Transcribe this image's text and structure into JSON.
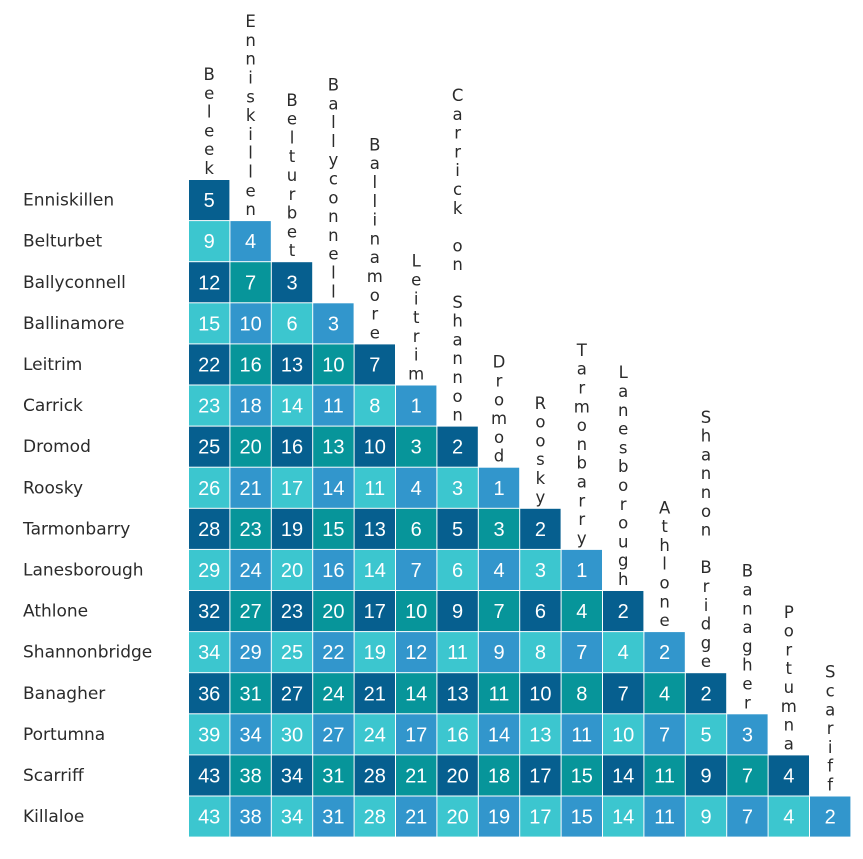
{
  "chart_data": {
    "type": "heatmap",
    "title": "",
    "columns": [
      "Beleek",
      "Enniskillen",
      "Belturbet",
      "Ballyconnell",
      "Ballinamore",
      "Leitrim",
      "Carrick on Shannon",
      "Dromod",
      "Roosky",
      "Tarmonbarry",
      "Lanesborough",
      "Athlone",
      "Shannon Bridge",
      "Banagher",
      "Portumna",
      "Scariff"
    ],
    "rows": [
      "Enniskillen",
      "Belturbet",
      "Ballyconnell",
      "Ballinamore",
      "Leitrim",
      "Carrick",
      "Dromod",
      "Roosky",
      "Tarmonbarry",
      "Lanesborough",
      "Athlone",
      "Shannonbridge",
      "Banagher",
      "Portumna",
      "Scarriff",
      "Killaloe"
    ],
    "values": [
      [
        5
      ],
      [
        9,
        4
      ],
      [
        12,
        7,
        3
      ],
      [
        15,
        10,
        6,
        3
      ],
      [
        22,
        16,
        13,
        10,
        7
      ],
      [
        23,
        18,
        14,
        11,
        8,
        1
      ],
      [
        25,
        20,
        16,
        13,
        10,
        3,
        2
      ],
      [
        26,
        21,
        17,
        14,
        11,
        4,
        3,
        1
      ],
      [
        28,
        23,
        19,
        15,
        13,
        6,
        5,
        3,
        2
      ],
      [
        29,
        24,
        20,
        16,
        14,
        7,
        6,
        4,
        3,
        1
      ],
      [
        32,
        27,
        23,
        20,
        17,
        10,
        9,
        7,
        6,
        4,
        2
      ],
      [
        34,
        29,
        25,
        22,
        19,
        12,
        11,
        9,
        8,
        7,
        4,
        2
      ],
      [
        36,
        31,
        27,
        24,
        21,
        14,
        13,
        11,
        10,
        8,
        7,
        4,
        2
      ],
      [
        39,
        34,
        30,
        27,
        24,
        17,
        16,
        14,
        13,
        11,
        10,
        7,
        5,
        3
      ],
      [
        43,
        38,
        34,
        31,
        28,
        21,
        20,
        18,
        17,
        15,
        14,
        11,
        9,
        7,
        4
      ],
      [
        43,
        38,
        34,
        31,
        28,
        21,
        20,
        19,
        17,
        15,
        14,
        11,
        9,
        7,
        4,
        2
      ]
    ],
    "palette": [
      "#065f8f",
      "#3296cc",
      "#07959a",
      "#3cc6cf"
    ]
  }
}
